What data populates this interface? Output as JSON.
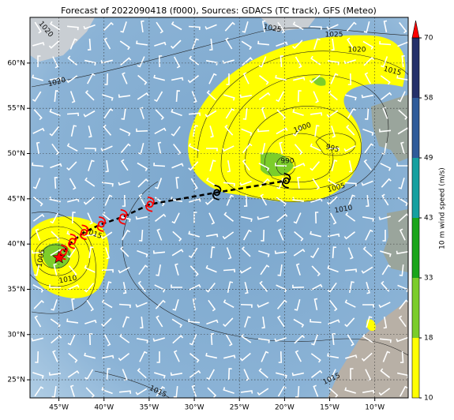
{
  "chart_data": {
    "type": "map",
    "title": "Forecast of 2022090418 (f000), Sources: GDACS (TC track), GFS (Meteo)",
    "xlim": [
      -48.2,
      -6.3
    ],
    "ylim": [
      23,
      65.05
    ],
    "xticks": [
      {
        "value": -45,
        "label": "45°W"
      },
      {
        "value": -40,
        "label": "40°W"
      },
      {
        "value": -35,
        "label": "35°W"
      },
      {
        "value": -30,
        "label": "30°W"
      },
      {
        "value": -25,
        "label": "25°W"
      },
      {
        "value": -20,
        "label": "20°W"
      },
      {
        "value": -15,
        "label": "15°W"
      },
      {
        "value": -10,
        "label": "10°W"
      }
    ],
    "yticks": [
      {
        "value": 25,
        "label": "25°N"
      },
      {
        "value": 30,
        "label": "30°N"
      },
      {
        "value": 35,
        "label": "35°N"
      },
      {
        "value": 40,
        "label": "40°N"
      },
      {
        "value": 45,
        "label": "45°N"
      },
      {
        "value": 50,
        "label": "50°N"
      },
      {
        "value": 55,
        "label": "55°N"
      },
      {
        "value": 60,
        "label": "60°N"
      }
    ],
    "grid": true,
    "track": {
      "x": [
        -45,
        -44.5,
        -43.5,
        -42.2,
        -40.3,
        -37.9,
        -34.9,
        -27.5,
        -19.8
      ],
      "y": [
        38.5,
        39.1,
        40.3,
        41.3,
        42.2,
        43.0,
        44.4,
        45.7,
        47.0
      ],
      "color": "#ff0000",
      "line_color": "#000000",
      "marker_colors": [
        "#ff0000",
        "#ff0000",
        "#ff0000",
        "#ff0000",
        "#ff0000",
        "#ff0000",
        "#ff0000",
        "#000000",
        "#000000"
      ]
    },
    "isobar_labels": [
      "1020",
      "1025",
      "1025",
      "1020",
      "1015",
      "1020",
      "1000",
      "995",
      "990",
      "1005",
      "1010",
      "1005",
      "1010",
      "1015",
      "1015",
      "1015"
    ],
    "colorbar": {
      "label": "10 m wind speed (m/s)",
      "ticks": [
        10,
        18,
        33,
        43,
        49,
        58,
        70
      ],
      "colors": [
        "#ffff00",
        "#7ccd2a",
        "#1aa51a",
        "#15a0a0",
        "#2e5b9a",
        "#24306a"
      ],
      "extend_color": "#ff0000"
    }
  }
}
